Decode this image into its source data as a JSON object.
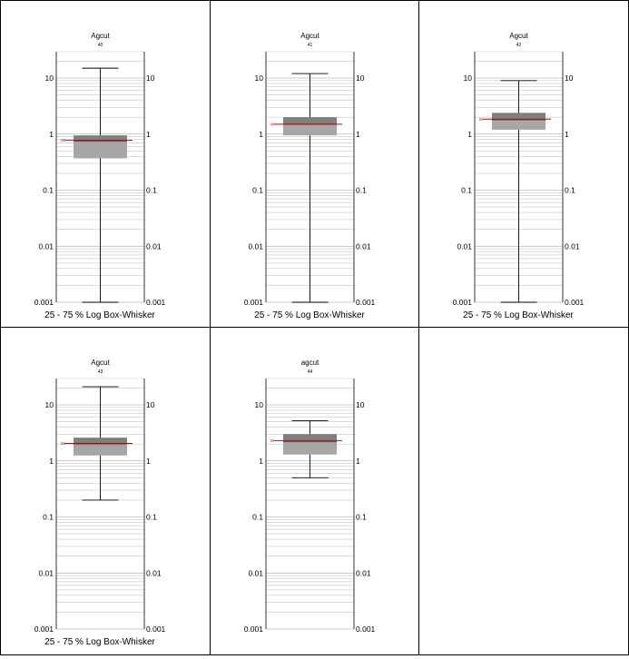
{
  "chart_data": [
    {
      "type": "box",
      "title": "Agcut",
      "subtitle": "40",
      "xlabel": "25 - 75 % Log Box-Whisker",
      "yscale": "log",
      "ylim": [
        0.001,
        30
      ],
      "ytick_labels": [
        "10",
        "1",
        "0.1",
        "0.01",
        "0.001"
      ],
      "whisker_low": 0.001,
      "q1": 0.37,
      "median": 0.75,
      "q3": 0.95,
      "whisker_high": 15,
      "mean": 0.78,
      "mean_label": "M"
    },
    {
      "type": "box",
      "title": "Agcut",
      "subtitle": "41",
      "xlabel": "25 - 75 % Log Box-Whisker",
      "yscale": "log",
      "ylim": [
        0.001,
        30
      ],
      "ytick_labels": [
        "10",
        "1",
        "0.1",
        "0.01",
        "0.001"
      ],
      "whisker_low": 0.001,
      "q1": 0.95,
      "median": 1.5,
      "q3": 2.0,
      "whisker_high": 12,
      "mean": 1.5,
      "mean_label": "M"
    },
    {
      "type": "box",
      "title": "Agcut",
      "subtitle": "42",
      "xlabel": "25 - 75 % Log Box-Whisker",
      "yscale": "log",
      "ylim": [
        0.001,
        30
      ],
      "ytick_labels": [
        "10",
        "1",
        "0.1",
        "0.01",
        "0.001"
      ],
      "whisker_low": 0.001,
      "q1": 1.2,
      "median": 1.8,
      "q3": 2.4,
      "whisker_high": 9,
      "mean": 1.85,
      "mean_label": "M"
    },
    {
      "type": "box",
      "title": "Agcut",
      "subtitle": "43",
      "xlabel": "25 - 75 % Log Box-Whisker",
      "yscale": "log",
      "ylim": [
        0.001,
        30
      ],
      "ytick_labels": [
        "10",
        "1",
        "0.1",
        "0.01",
        "0.001"
      ],
      "whisker_low": 0.2,
      "q1": 1.25,
      "median": 2.0,
      "q3": 2.6,
      "whisker_high": 21,
      "mean": 2.05,
      "mean_label": "M"
    },
    {
      "type": "box",
      "title": "agcut",
      "subtitle": "44",
      "xlabel": "",
      "yscale": "log",
      "ylim": [
        0.001,
        30
      ],
      "ytick_labels": [
        "10",
        "1",
        "0.1",
        "0.01",
        "0.001"
      ],
      "whisker_low": 0.5,
      "q1": 1.3,
      "median": 2.2,
      "q3": 3.0,
      "whisker_high": 5.2,
      "mean": 2.3,
      "mean_label": "M"
    }
  ],
  "colors": {
    "box_fill": "#a6a6a6",
    "box_upper_fill": "#7f7f7f",
    "median_line": "#595959",
    "mean_line": "#c00000",
    "grid": "#c8c8c8",
    "axis": "#000000"
  }
}
